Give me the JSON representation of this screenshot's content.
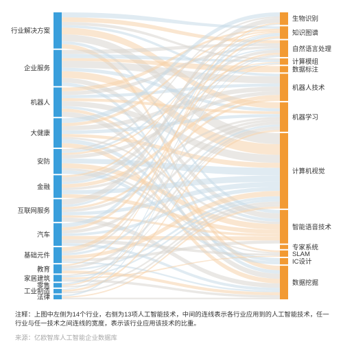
{
  "colors": {
    "left_bar": "#3a9fdc",
    "right_bar": "#f29a33",
    "flow_blue": "#c6dae7",
    "flow_orange": "#f6d2aa",
    "flow_gray": "#d9d6cf"
  },
  "left_nodes": [
    {
      "label": "行业解决方案",
      "weight": 16
    },
    {
      "label": "企业服务",
      "weight": 16
    },
    {
      "label": "机器人",
      "weight": 13
    },
    {
      "label": "大健康",
      "weight": 13
    },
    {
      "label": "安防",
      "weight": 11
    },
    {
      "label": "金融",
      "weight": 10
    },
    {
      "label": "互联网服务",
      "weight": 10
    },
    {
      "label": "汽车",
      "weight": 10
    },
    {
      "label": "基础元件",
      "weight": 7
    },
    {
      "label": "教育",
      "weight": 4
    },
    {
      "label": "家居建筑",
      "weight": 3
    },
    {
      "label": "零售",
      "weight": 2
    },
    {
      "label": "工业制造",
      "weight": 2
    },
    {
      "label": "法律",
      "weight": 2
    }
  ],
  "right_nodes": [
    {
      "label": "生物识别",
      "weight": 6
    },
    {
      "label": "知识图谱",
      "weight": 6
    },
    {
      "label": "自然语言处理",
      "weight": 8
    },
    {
      "label": "计算模组",
      "weight": 3
    },
    {
      "label": "数据标注",
      "weight": 3
    },
    {
      "label": "机器人技术",
      "weight": 13
    },
    {
      "label": "机器学习",
      "weight": 14
    },
    {
      "label": "计算机视觉",
      "weight": 36
    },
    {
      "label": "智能语音技术",
      "weight": 16
    },
    {
      "label": "专家系统",
      "weight": 2
    },
    {
      "label": "SLAM",
      "weight": 3
    },
    {
      "label": "IC设计",
      "weight": 3
    },
    {
      "label": "数据挖掘",
      "weight": 16
    }
  ],
  "note": "注释：上图中左侧为14个行业，右侧为13项人工智能技术，中间的连线表示各行业应用到的人工智能技术，任一行业与任一技术之间连线的宽度，表示该行业应用该技术的比重。",
  "source": "来源：亿欧智库人工智能企业数据库"
}
